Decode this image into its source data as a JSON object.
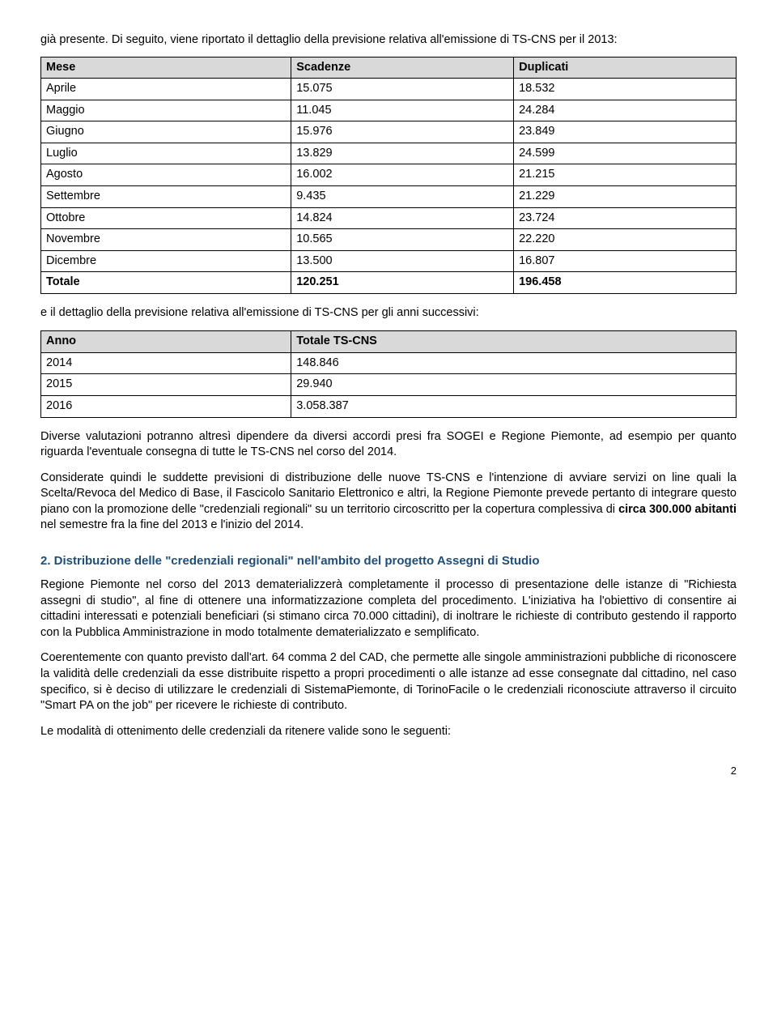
{
  "intro": "già presente.  Di seguito, viene riportato il dettaglio della previsione relativa all'emissione di TS-CNS per il 2013:",
  "table1": {
    "headers": [
      "Mese",
      "Scadenze",
      "Duplicati"
    ],
    "rows": [
      [
        "Aprile",
        "15.075",
        "18.532"
      ],
      [
        "Maggio",
        "11.045",
        "24.284"
      ],
      [
        "Giugno",
        "15.976",
        "23.849"
      ],
      [
        "Luglio",
        "13.829",
        "24.599"
      ],
      [
        "Agosto",
        "16.002",
        "21.215"
      ],
      [
        "Settembre",
        "9.435",
        "21.229"
      ],
      [
        "Ottobre",
        "14.824",
        "23.724"
      ],
      [
        "Novembre",
        "10.565",
        "22.220"
      ],
      [
        "Dicembre",
        "13.500",
        "16.807"
      ]
    ],
    "total": [
      "Totale",
      "120.251",
      "196.458"
    ]
  },
  "mid": "e il dettaglio della previsione relativa all'emissione di TS-CNS per gli anni successivi:",
  "table2": {
    "headers": [
      "Anno",
      "Totale TS-CNS"
    ],
    "rows": [
      [
        "2014",
        "148.846"
      ],
      [
        "2015",
        "29.940"
      ],
      [
        "2016",
        "3.058.387"
      ]
    ]
  },
  "p1": "Diverse valutazioni potranno altresì dipendere da diversi accordi presi  fra SOGEI e Regione Piemonte, ad esempio per quanto riguarda  l'eventuale consegna di tutte le TS-CNS nel corso del 2014.",
  "p2_a": "Considerate quindi le suddette previsioni di distribuzione delle nuove TS-CNS e l'intenzione di avviare servizi on line quali la Scelta/Revoca del Medico di Base, il Fascicolo Sanitario Elettronico e altri, la Regione Piemonte prevede pertanto di integrare questo piano con la promozione delle \"credenziali regionali\" su un territorio circoscritto per la copertura complessiva di ",
  "p2_b": "circa 300.000 abitanti",
  "p2_c": " nel semestre fra la fine del 2013 e l'inizio del 2014.",
  "h2": "2. Distribuzione  delle \"credenziali regionali\" nell'ambito del progetto Assegni di Studio",
  "p3": "Regione Piemonte nel corso del 2013 dematerializzerà completamente il processo di presentazione  delle istanze di \"Richiesta assegni di studio\", al fine di ottenere una informatizzazione completa del procedimento. L'iniziativa ha l'obiettivo di consentire  ai cittadini interessati e potenziali beneficiari (si stimano circa 70.000 cittadini), di inoltrare le richieste di contributo gestendo il rapporto con la Pubblica Amministrazione in modo totalmente dematerializzato e semplificato.",
  "p4": "Coerentemente con quanto previsto dall'art. 64 comma 2 del CAD, che permette alle singole amministrazioni pubbliche di riconoscere la validità delle credenziali da esse distribuite rispetto a propri procedimenti o alle istanze ad esse consegnate dal cittadino, nel caso specifico, si è deciso di utilizzare le credenziali di SistemaPiemonte, di TorinoFacile o le credenziali riconosciute attraverso il circuito \"Smart PA on the job\" per ricevere le richieste di contributo.",
  "p5": "Le modalità di ottenimento delle credenziali da ritenere valide sono le seguenti:",
  "page": "2"
}
